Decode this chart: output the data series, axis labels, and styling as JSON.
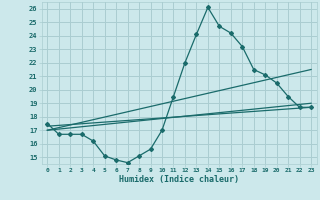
{
  "title": "",
  "xlabel": "Humidex (Indice chaleur)",
  "ylabel": "",
  "bg_color": "#cce8eb",
  "grid_color": "#aacdd1",
  "line_color": "#1a6b6b",
  "xlim": [
    -0.5,
    23.5
  ],
  "ylim": [
    14.5,
    26.5
  ],
  "xticks": [
    0,
    1,
    2,
    3,
    4,
    5,
    6,
    7,
    8,
    9,
    10,
    11,
    12,
    13,
    14,
    15,
    16,
    17,
    18,
    19,
    20,
    21,
    22,
    23
  ],
  "yticks": [
    15,
    16,
    17,
    18,
    19,
    20,
    21,
    22,
    23,
    24,
    25,
    26
  ],
  "series1_x": [
    0,
    1,
    2,
    3,
    4,
    5,
    6,
    7,
    8,
    9,
    10,
    11,
    12,
    13,
    14,
    15,
    16,
    17,
    18,
    19,
    20,
    21,
    22,
    23
  ],
  "series1_y": [
    17.5,
    16.7,
    16.7,
    16.7,
    16.2,
    15.1,
    14.8,
    14.6,
    15.1,
    15.6,
    17.0,
    19.5,
    22.0,
    24.1,
    26.1,
    24.7,
    24.2,
    23.2,
    21.5,
    21.1,
    20.5,
    19.5,
    18.7,
    18.7
  ],
  "series2_x": [
    0,
    23
  ],
  "series2_y": [
    17.3,
    18.7
  ],
  "series3_x": [
    0,
    23
  ],
  "series3_y": [
    17.0,
    21.5
  ],
  "series4_x": [
    0,
    23
  ],
  "series4_y": [
    17.0,
    19.0
  ]
}
